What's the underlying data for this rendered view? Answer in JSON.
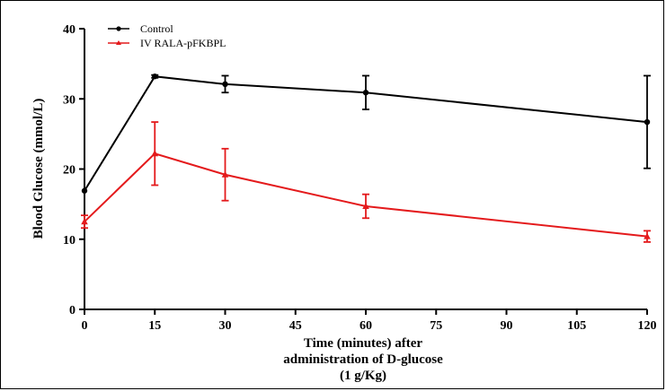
{
  "chart_data": {
    "type": "line",
    "xlabel": [
      "Time (minutes) after",
      "administration of D-glucose",
      "(1 g/Kg)"
    ],
    "ylabel": "Blood Glucose (mmol/L)",
    "xlim": [
      0,
      120
    ],
    "ylim": [
      0,
      40
    ],
    "xticks": [
      0,
      15,
      30,
      45,
      60,
      75,
      90,
      105,
      120
    ],
    "yticks": [
      0,
      10,
      20,
      30,
      40
    ],
    "grid": false,
    "legend_position": "top-left",
    "series": [
      {
        "name": "Control",
        "color": "#000000",
        "marker": "circle",
        "x": [
          0,
          15,
          30,
          60,
          120
        ],
        "y": [
          16.9,
          33.2,
          32.1,
          30.9,
          26.7
        ],
        "error": [
          0.0,
          0.2,
          1.2,
          2.4,
          6.6
        ]
      },
      {
        "name": "IV RALA-pFKBPL",
        "color": "#e41a1c",
        "marker": "triangle",
        "x": [
          0,
          15,
          30,
          60,
          120
        ],
        "y": [
          12.5,
          22.2,
          19.2,
          14.7,
          10.4
        ],
        "error": [
          0.9,
          4.5,
          3.7,
          1.7,
          0.8
        ]
      }
    ]
  }
}
